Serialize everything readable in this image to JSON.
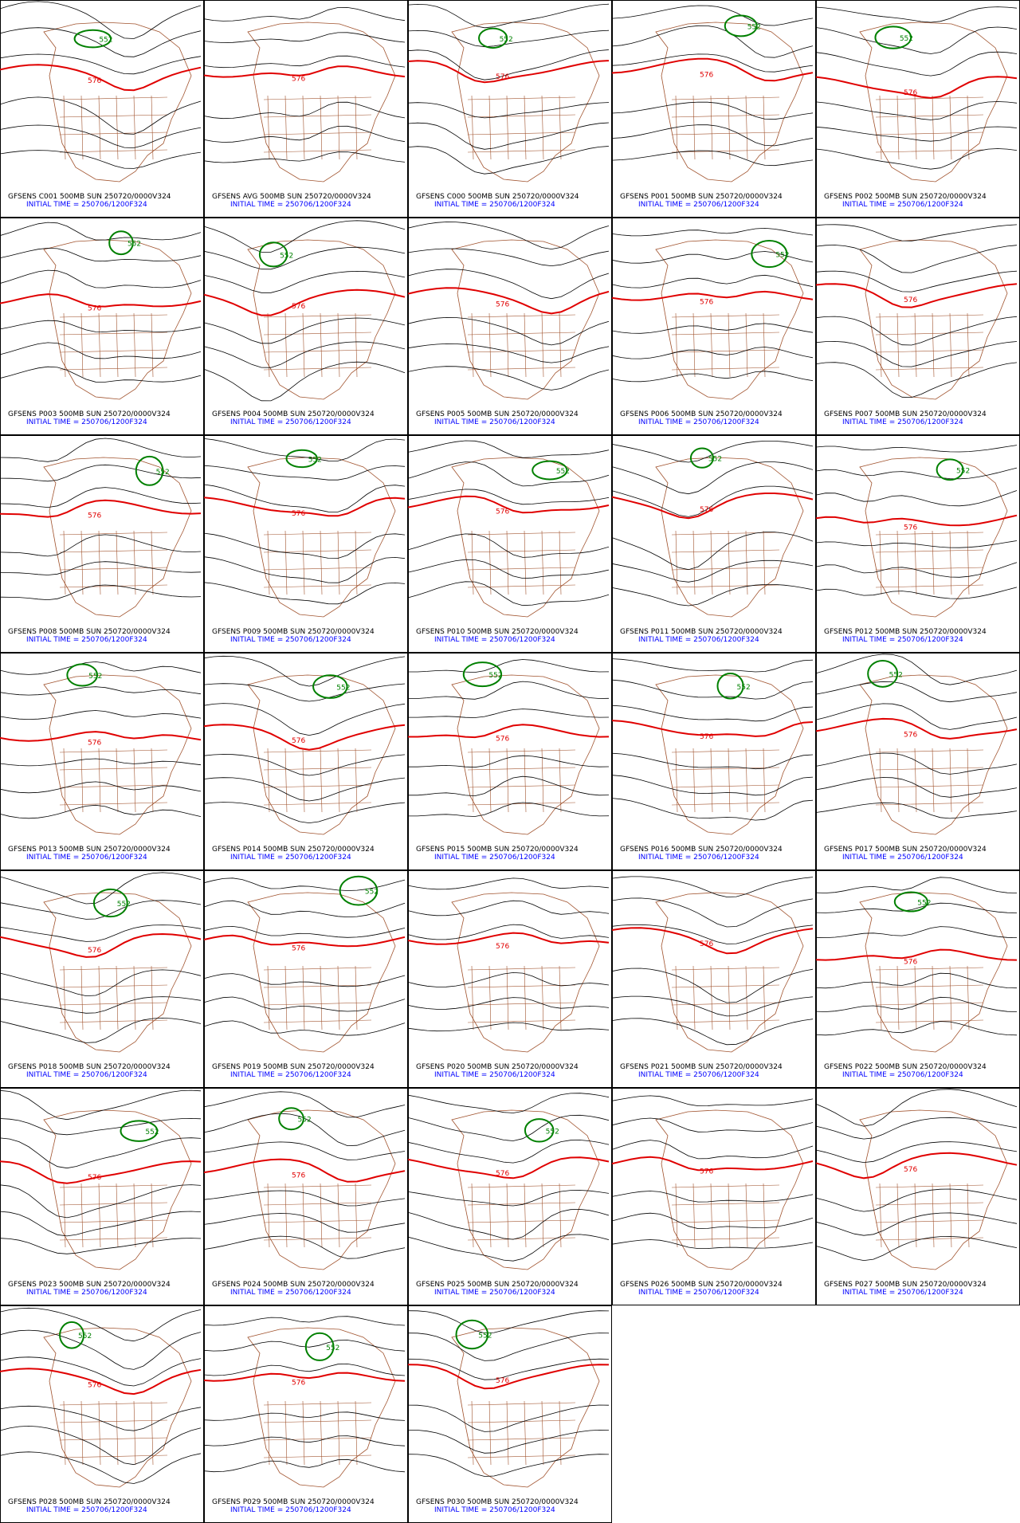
{
  "panels": [
    {
      "caption": "GFSENS C001 500MB SUN 250720/0000V324",
      "init": "INITIAL TIME = 250706/1200F324",
      "contour_labels": [
        "576",
        "552"
      ]
    },
    {
      "caption": "GFSENS AVG 500MB SUN 250720/0000V324",
      "init": "INITIAL TIME = 250706/1200F324",
      "contour_labels": [
        "576"
      ]
    },
    {
      "caption": "GFSENS C000 500MB SUN 250720/0000V324",
      "init": "INITIAL TIME = 250706/1200F324",
      "contour_labels": [
        "576",
        "552"
      ]
    },
    {
      "caption": "GFSENS P001 500MB SUN 250720/0000V324",
      "init": "INITIAL TIME = 250706/1200F324",
      "contour_labels": [
        "576",
        "552"
      ]
    },
    {
      "caption": "GFSENS P002 500MB SUN 250720/0000V324",
      "init": "INITIAL TIME = 250706/1200F324",
      "contour_labels": [
        "576",
        "552"
      ]
    },
    {
      "caption": "GFSENS P003 500MB SUN 250720/0000V324",
      "init": "INITIAL TIME = 250706/1200F324",
      "contour_labels": [
        "576",
        "552"
      ]
    },
    {
      "caption": "GFSENS P004 500MB SUN 250720/0000V324",
      "init": "INITIAL TIME = 250706/1200F324",
      "contour_labels": [
        "576",
        "552"
      ]
    },
    {
      "caption": "GFSENS P005 500MB SUN 250720/0000V324",
      "init": "INITIAL TIME = 250706/1200F324",
      "contour_labels": [
        "576"
      ]
    },
    {
      "caption": "GFSENS P006 500MB SUN 250720/0000V324",
      "init": "INITIAL TIME = 250706/1200F324",
      "contour_labels": [
        "576",
        "552"
      ]
    },
    {
      "caption": "GFSENS P007 500MB SUN 250720/0000V324",
      "init": "INITIAL TIME = 250706/1200F324",
      "contour_labels": [
        "576"
      ]
    },
    {
      "caption": "GFSENS P008 500MB SUN 250720/0000V324",
      "init": "INITIAL TIME = 250706/1200F324",
      "contour_labels": [
        "576",
        "552"
      ]
    },
    {
      "caption": "GFSENS P009 500MB SUN 250720/0000V324",
      "init": "INITIAL TIME = 250706/1200F324",
      "contour_labels": [
        "576",
        "552"
      ]
    },
    {
      "caption": "GFSENS P010 500MB SUN 250720/0000V324",
      "init": "INITIAL TIME = 250706/1200F324",
      "contour_labels": [
        "576",
        "552"
      ]
    },
    {
      "caption": "GFSENS P011 500MB SUN 250720/0000V324",
      "init": "INITIAL TIME = 250706/1200F324",
      "contour_labels": [
        "576",
        "552"
      ]
    },
    {
      "caption": "GFSENS P012 500MB SUN 250720/0000V324",
      "init": "INITIAL TIME = 250706/1200F324",
      "contour_labels": [
        "576",
        "552"
      ]
    },
    {
      "caption": "GFSENS P013 500MB SUN 250720/0000V324",
      "init": "INITIAL TIME = 250706/1200F324",
      "contour_labels": [
        "576",
        "552"
      ]
    },
    {
      "caption": "GFSENS P014 500MB SUN 250720/0000V324",
      "init": "INITIAL TIME = 250706/1200F324",
      "contour_labels": [
        "576",
        "552"
      ]
    },
    {
      "caption": "GFSENS P015 500MB SUN 250720/0000V324",
      "init": "INITIAL TIME = 250706/1200F324",
      "contour_labels": [
        "576",
        "552"
      ]
    },
    {
      "caption": "GFSENS P016 500MB SUN 250720/0000V324",
      "init": "INITIAL TIME = 250706/1200F324",
      "contour_labels": [
        "576",
        "552"
      ]
    },
    {
      "caption": "GFSENS P017 500MB SUN 250720/0000V324",
      "init": "INITIAL TIME = 250706/1200F324",
      "contour_labels": [
        "576",
        "552"
      ]
    },
    {
      "caption": "GFSENS P018 500MB SUN 250720/0000V324",
      "init": "INITIAL TIME = 250706/1200F324",
      "contour_labels": [
        "576",
        "552"
      ]
    },
    {
      "caption": "GFSENS P019 500MB SUN 250720/0000V324",
      "init": "INITIAL TIME = 250706/1200F324",
      "contour_labels": [
        "576",
        "552"
      ]
    },
    {
      "caption": "GFSENS P020 500MB SUN 250720/0000V324",
      "init": "INITIAL TIME = 250706/1200F324",
      "contour_labels": [
        "576"
      ]
    },
    {
      "caption": "GFSENS P021 500MB SUN 250720/0000V324",
      "init": "INITIAL TIME = 250706/1200F324",
      "contour_labels": [
        "576"
      ]
    },
    {
      "caption": "GFSENS P022 500MB SUN 250720/0000V324",
      "init": "INITIAL TIME = 250706/1200F324",
      "contour_labels": [
        "576",
        "552"
      ]
    },
    {
      "caption": "GFSENS P023 500MB SUN 250720/0000V324",
      "init": "INITIAL TIME = 250706/1200F324",
      "contour_labels": [
        "576",
        "552"
      ]
    },
    {
      "caption": "GFSENS P024 500MB SUN 250720/0000V324",
      "init": "INITIAL TIME = 250706/1200F324",
      "contour_labels": [
        "576",
        "552"
      ]
    },
    {
      "caption": "GFSENS P025 500MB SUN 250720/0000V324",
      "init": "INITIAL TIME = 250706/1200F324",
      "contour_labels": [
        "576",
        "552"
      ]
    },
    {
      "caption": "GFSENS P026 500MB SUN 250720/0000V324",
      "init": "INITIAL TIME = 250706/1200F324",
      "contour_labels": [
        "576"
      ]
    },
    {
      "caption": "GFSENS P027 500MB SUN 250720/0000V324",
      "init": "INITIAL TIME = 250706/1200F324",
      "contour_labels": [
        "576"
      ]
    },
    {
      "caption": "GFSENS P028 500MB SUN 250720/0000V324",
      "init": "INITIAL TIME = 250706/1200F324",
      "contour_labels": [
        "576",
        "552"
      ]
    },
    {
      "caption": "GFSENS P029 500MB SUN 250720/0000V324",
      "init": "INITIAL TIME = 250706/1200F324",
      "contour_labels": [
        "576",
        "552"
      ]
    },
    {
      "caption": "GFSENS P030 500MB SUN 250720/0000V324",
      "init": "INITIAL TIME = 250706/1200F324",
      "contour_labels": [
        "576",
        "552"
      ]
    }
  ]
}
